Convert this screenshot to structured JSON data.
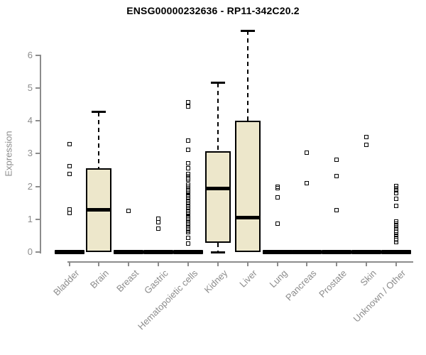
{
  "title": "ENSG00000232636 - RP11-342C20.2",
  "chart_data": {
    "type": "boxplot",
    "title": "ENSG00000232636 - RP11-342C20.2",
    "xlabel": "",
    "ylabel": "Expression",
    "ylim": [
      0,
      6.9
    ],
    "yticks": [
      0,
      1,
      2,
      3,
      4,
      5,
      6
    ],
    "grid": false,
    "legend": "none",
    "box_fill": "#EDE7CB",
    "box_border": "#000000",
    "axis_color": "#8C8C8C",
    "label_color": "#8C8C8C",
    "categories": [
      "Bladder",
      "Brain",
      "Breast",
      "Gastric",
      "Hematopoietic cells",
      "Kidney",
      "Liver",
      "Lung",
      "Pancreas",
      "Prostate",
      "Skin",
      "Unknown / Other"
    ],
    "series": [
      {
        "name": "Bladder",
        "q1": 0,
        "median": 0,
        "q3": 0,
        "whisker_low": 0,
        "whisker_high": 0,
        "outliers": [
          3.3,
          2.62,
          2.38,
          1.3,
          1.2
        ]
      },
      {
        "name": "Brain",
        "q1": 0,
        "median": 1.29,
        "q3": 2.56,
        "whisker_low": 0,
        "whisker_high": 4.27,
        "outliers": []
      },
      {
        "name": "Breast",
        "q1": 0,
        "median": 0,
        "q3": 0,
        "whisker_low": 0,
        "whisker_high": 0,
        "outliers": [
          1.25
        ]
      },
      {
        "name": "Gastric",
        "q1": 0,
        "median": 0,
        "q3": 0,
        "whisker_low": 0,
        "whisker_high": 0,
        "outliers": [
          1.01,
          0.9,
          0.72
        ]
      },
      {
        "name": "Hematopoietic cells",
        "q1": 0,
        "median": 0,
        "q3": 0,
        "whisker_low": 0,
        "whisker_high": 0,
        "outliers": [
          4.57,
          4.44,
          3.39,
          3.12,
          2.7,
          2.56,
          2.38,
          2.32,
          2.26,
          2.2,
          2.05,
          2.0,
          1.95,
          1.9,
          1.85,
          1.8,
          1.75,
          1.7,
          1.65,
          1.6,
          1.55,
          1.5,
          1.45,
          1.4,
          1.35,
          1.3,
          1.25,
          1.2,
          1.15,
          1.1,
          1.05,
          1.0,
          0.95,
          0.9,
          0.85,
          0.8,
          0.75,
          0.7,
          0.65,
          0.6,
          0.43,
          0.26
        ]
      },
      {
        "name": "Kidney",
        "q1": 0.29,
        "median": 1.94,
        "q3": 3.08,
        "whisker_low": 0,
        "whisker_high": 5.16,
        "outliers": []
      },
      {
        "name": "Liver",
        "q1": 0,
        "median": 1.04,
        "q3": 4.0,
        "whisker_low": 0,
        "whisker_high": 6.75,
        "outliers": []
      },
      {
        "name": "Lung",
        "q1": 0,
        "median": 0,
        "q3": 0,
        "whisker_low": 0,
        "whisker_high": 0,
        "outliers": [
          2.0,
          1.95,
          1.66,
          0.87
        ]
      },
      {
        "name": "Pancreas",
        "q1": 0,
        "median": 0,
        "q3": 0,
        "whisker_low": 0,
        "whisker_high": 0,
        "outliers": [
          3.02,
          2.09
        ]
      },
      {
        "name": "Prostate",
        "q1": 0,
        "median": 0,
        "q3": 0,
        "whisker_low": 0,
        "whisker_high": 0,
        "outliers": [
          2.81,
          2.31,
          1.27
        ]
      },
      {
        "name": "Skin",
        "q1": 0,
        "median": 0,
        "q3": 0,
        "whisker_low": 0,
        "whisker_high": 0,
        "outliers": [
          3.5,
          3.27
        ]
      },
      {
        "name": "Unknown / Other",
        "q1": 0,
        "median": 0,
        "q3": 0,
        "whisker_low": 0,
        "whisker_high": 0,
        "outliers": [
          2.02,
          1.95,
          1.88,
          1.8,
          1.62,
          1.4,
          0.93,
          0.86,
          0.8,
          0.72,
          0.66,
          0.6,
          0.54,
          0.48,
          0.42,
          0.36,
          0.3
        ]
      }
    ]
  }
}
